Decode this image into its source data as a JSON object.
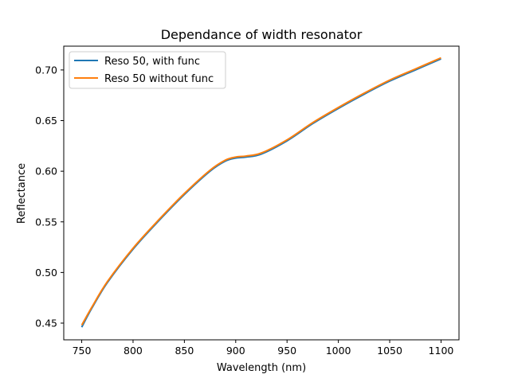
{
  "chart_data": {
    "type": "line",
    "title": "Dependance of width resonator",
    "xlabel": "Wavelength (nm)",
    "ylabel": "Reflectance",
    "xlim": [
      732.5,
      1117.5
    ],
    "ylim": [
      0.4335,
      0.7235
    ],
    "xticks": [
      750,
      800,
      850,
      900,
      950,
      1000,
      1050,
      1100
    ],
    "yticks": [
      0.45,
      0.5,
      0.55,
      0.6,
      0.65,
      0.7
    ],
    "ytick_labels": [
      "0.45",
      "0.50",
      "0.55",
      "0.60",
      "0.65",
      "0.70"
    ],
    "grid": false,
    "legend_position": "upper-left",
    "series": [
      {
        "name": "Reso 50, with func",
        "color": "#1f77b4",
        "x": [
          750,
          760,
          775,
          800,
          825,
          850,
          875,
          890,
          900,
          910,
          925,
          950,
          975,
          1000,
          1025,
          1050,
          1075,
          1100
        ],
        "y": [
          0.446,
          0.465,
          0.49,
          0.523,
          0.551,
          0.577,
          0.6,
          0.61,
          0.613,
          0.614,
          0.617,
          0.63,
          0.647,
          0.662,
          0.676,
          0.689,
          0.7,
          0.711
        ]
      },
      {
        "name": "Reso 50 without func",
        "color": "#ff7f0e",
        "x": [
          750,
          760,
          775,
          800,
          825,
          850,
          875,
          890,
          900,
          910,
          925,
          950,
          975,
          1000,
          1025,
          1050,
          1075,
          1100
        ],
        "y": [
          0.448,
          0.466,
          0.491,
          0.524,
          0.552,
          0.578,
          0.601,
          0.611,
          0.614,
          0.615,
          0.618,
          0.631,
          0.648,
          0.663,
          0.677,
          0.69,
          0.701,
          0.712
        ]
      }
    ]
  }
}
